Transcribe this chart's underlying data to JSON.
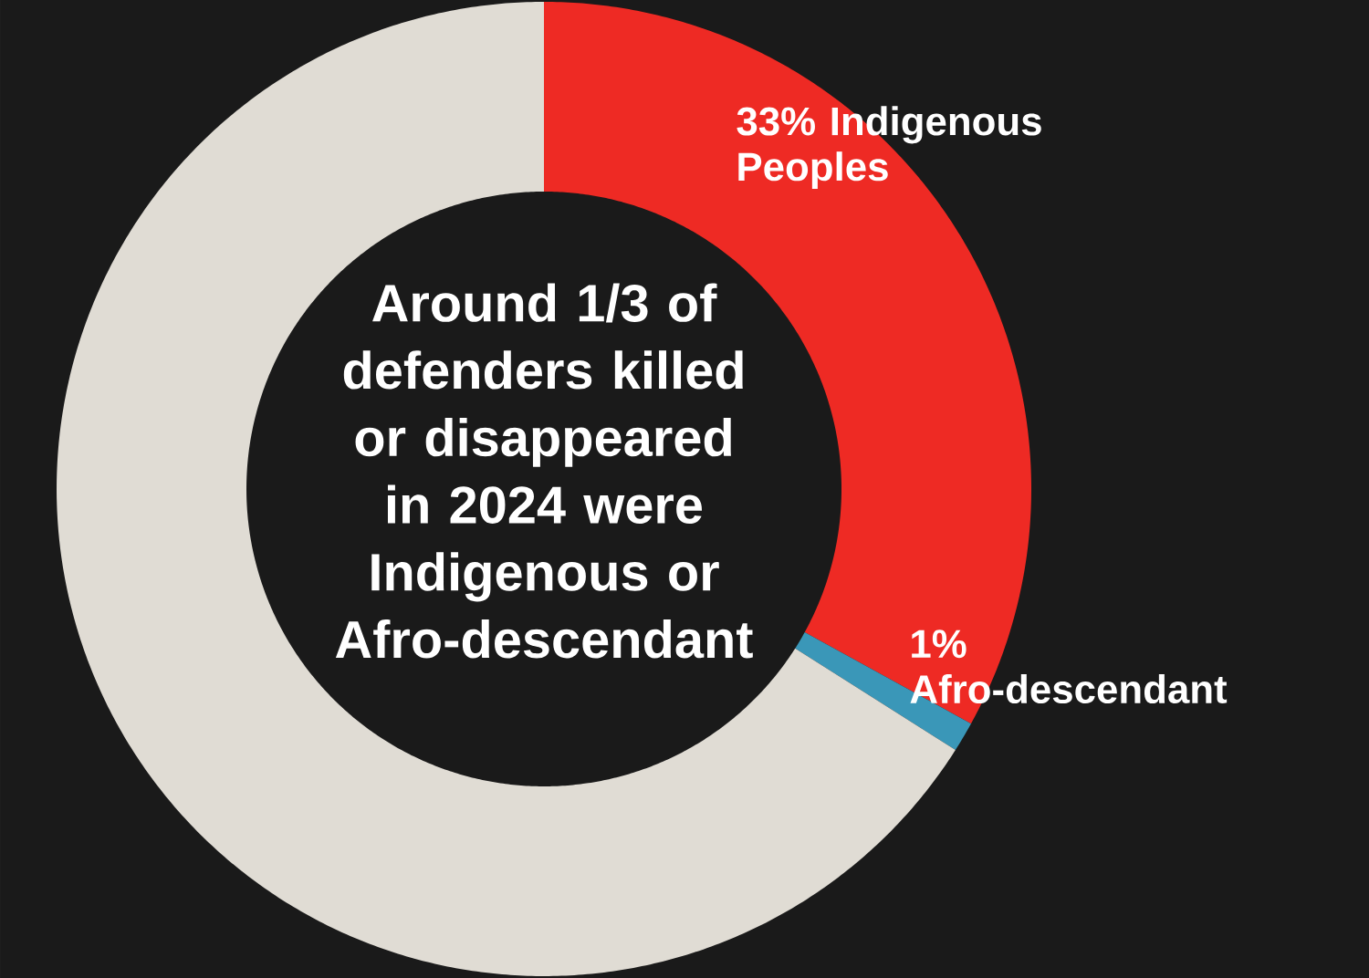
{
  "chart_data": {
    "type": "donut",
    "title": "Around 1/3 of defenders killed or disappeared in 2024 were Indigenous or Afro-descendant",
    "categories": [
      "Indigenous Peoples",
      "Afro-descendant",
      null
    ],
    "values": [
      33,
      1,
      66
    ],
    "value_labels": [
      "33%",
      "1%",
      null
    ],
    "colors": [
      "#ee2a24",
      "#3a97b8",
      "#e0dcd4"
    ]
  }
}
